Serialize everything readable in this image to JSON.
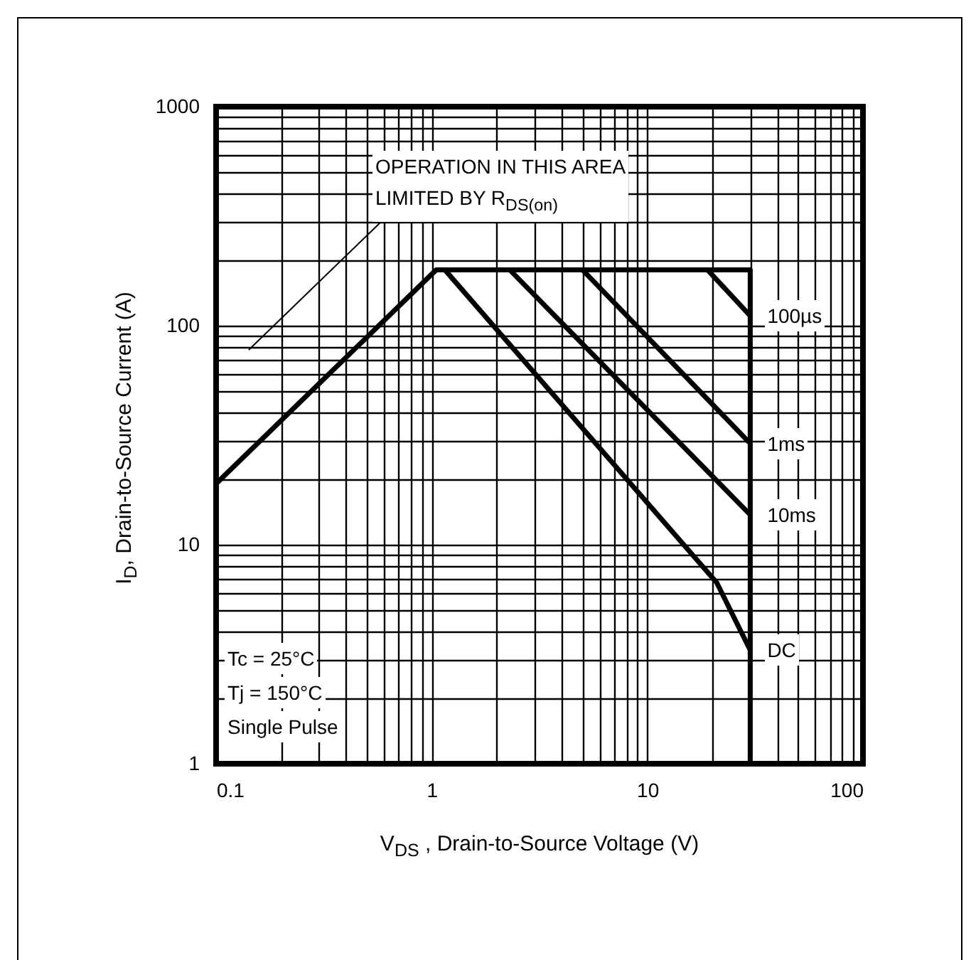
{
  "chart_data": {
    "type": "line",
    "xlabel": "V$_{DS}$ , Drain-to-Source Voltage (V)",
    "ylabel": "I$_{D}$, Drain-to-Source Current (A)",
    "log": "xy",
    "grid": true,
    "xlim": [
      0.1,
      100
    ],
    "xticks": [
      0.1,
      1,
      10,
      100
    ],
    "ylim": [
      1,
      1000
    ],
    "yticks": [
      1,
      10,
      100,
      1000
    ],
    "series": [
      {
        "color": "#000000",
        "x": [
          0.1,
          1.05,
          30,
          30
        ],
        "values": [
          19,
          180,
          180,
          1
        ]
      },
      {
        "name": "100µs",
        "color": "#000000",
        "x": [
          19,
          30
        ],
        "values": [
          180,
          111
        ]
      },
      {
        "name": "1ms",
        "color": "#000000",
        "x": [
          5,
          30
        ],
        "values": [
          180,
          29
        ]
      },
      {
        "name": "10ms",
        "color": "#000000",
        "x": [
          2.3,
          30
        ],
        "values": [
          180,
          13.7
        ]
      },
      {
        "name": "DC",
        "color": "#000000",
        "x": [
          1.15,
          21,
          30
        ],
        "values": [
          180,
          6.7,
          3.3
        ]
      }
    ],
    "annotations": [
      "OPERATION IN THIS AREA\nLIMITED BY R$_{DS(on)}$",
      "Tc = 25°C",
      "Tj = 150°C",
      "Single Pulse"
    ]
  }
}
